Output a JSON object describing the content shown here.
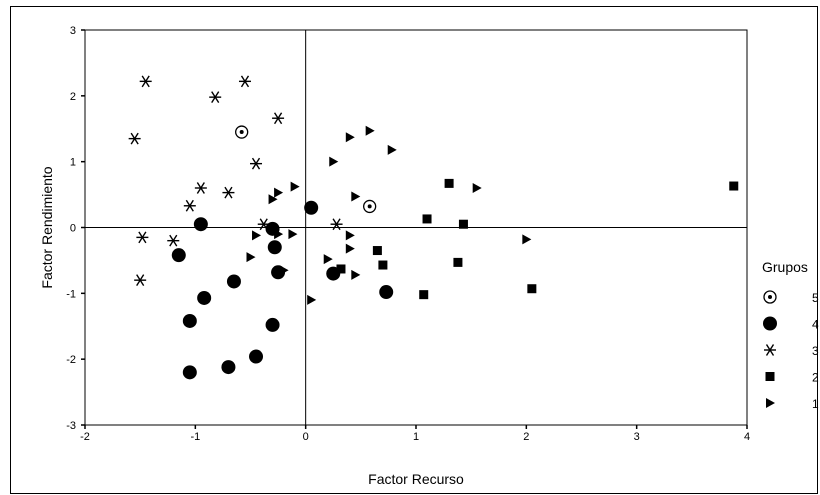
{
  "chart_data": {
    "type": "scatter",
    "title": "",
    "xlabel": "Factor Recurso",
    "ylabel": "Factor Rendimiento",
    "xlim": [
      -2,
      4
    ],
    "ylim": [
      -3,
      3
    ],
    "xticks": [
      "-2",
      "-1",
      "0",
      "1",
      "2",
      "3",
      "4"
    ],
    "yticks": [
      "-3",
      "-2",
      "-1",
      "0",
      "1",
      "2",
      "3"
    ],
    "reference_lines": {
      "x": 0,
      "y": 0
    },
    "grid": false,
    "legend": {
      "title": "Grupos",
      "position": "right"
    },
    "series": [
      {
        "name": "5",
        "marker": "ring-dot",
        "points": [
          [
            -0.58,
            1.45
          ],
          [
            0.58,
            0.32
          ]
        ]
      },
      {
        "name": "4",
        "marker": "circle",
        "points": [
          [
            -0.95,
            0.05
          ],
          [
            -1.15,
            -0.42
          ],
          [
            -0.92,
            -1.07
          ],
          [
            -1.05,
            -1.42
          ],
          [
            -1.05,
            -2.2
          ],
          [
            -0.7,
            -2.12
          ],
          [
            -0.45,
            -1.96
          ],
          [
            -0.3,
            -1.48
          ],
          [
            -0.65,
            -0.82
          ],
          [
            -0.3,
            -0.02
          ],
          [
            -0.28,
            -0.3
          ],
          [
            -0.25,
            -0.68
          ],
          [
            0.05,
            0.3
          ],
          [
            0.25,
            -0.7
          ],
          [
            0.73,
            -0.98
          ]
        ]
      },
      {
        "name": "3",
        "marker": "asterisk",
        "points": [
          [
            -1.45,
            2.22
          ],
          [
            -0.55,
            2.22
          ],
          [
            -0.82,
            1.98
          ],
          [
            -0.25,
            1.66
          ],
          [
            -1.55,
            1.35
          ],
          [
            -0.45,
            0.97
          ],
          [
            -0.95,
            0.6
          ],
          [
            -0.7,
            0.53
          ],
          [
            -1.05,
            0.33
          ],
          [
            -1.48,
            -0.15
          ],
          [
            -1.2,
            -0.2
          ],
          [
            -1.5,
            -0.8
          ],
          [
            -0.38,
            0.05
          ],
          [
            0.28,
            0.05
          ]
        ]
      },
      {
        "name": "2",
        "marker": "square",
        "points": [
          [
            3.88,
            0.63
          ],
          [
            1.3,
            0.67
          ],
          [
            1.1,
            0.13
          ],
          [
            1.43,
            0.05
          ],
          [
            0.65,
            -0.35
          ],
          [
            0.7,
            -0.57
          ],
          [
            1.38,
            -0.53
          ],
          [
            1.07,
            -1.02
          ],
          [
            2.05,
            -0.93
          ],
          [
            0.32,
            -0.63
          ]
        ]
      },
      {
        "name": "1",
        "marker": "triangle-right",
        "points": [
          [
            0.58,
            1.47
          ],
          [
            0.4,
            1.37
          ],
          [
            0.78,
            1.18
          ],
          [
            0.25,
            1.0
          ],
          [
            1.55,
            0.6
          ],
          [
            -0.1,
            0.62
          ],
          [
            -0.25,
            0.53
          ],
          [
            -0.3,
            0.43
          ],
          [
            0.45,
            0.47
          ],
          [
            0.4,
            -0.12
          ],
          [
            0.4,
            -0.32
          ],
          [
            -0.25,
            -0.1
          ],
          [
            -0.12,
            -0.1
          ],
          [
            2.0,
            -0.18
          ],
          [
            -0.5,
            -0.45
          ],
          [
            0.2,
            -0.48
          ],
          [
            0.45,
            -0.72
          ],
          [
            -0.2,
            -0.65
          ],
          [
            0.05,
            -1.1
          ],
          [
            -0.45,
            -0.12
          ]
        ]
      }
    ]
  }
}
